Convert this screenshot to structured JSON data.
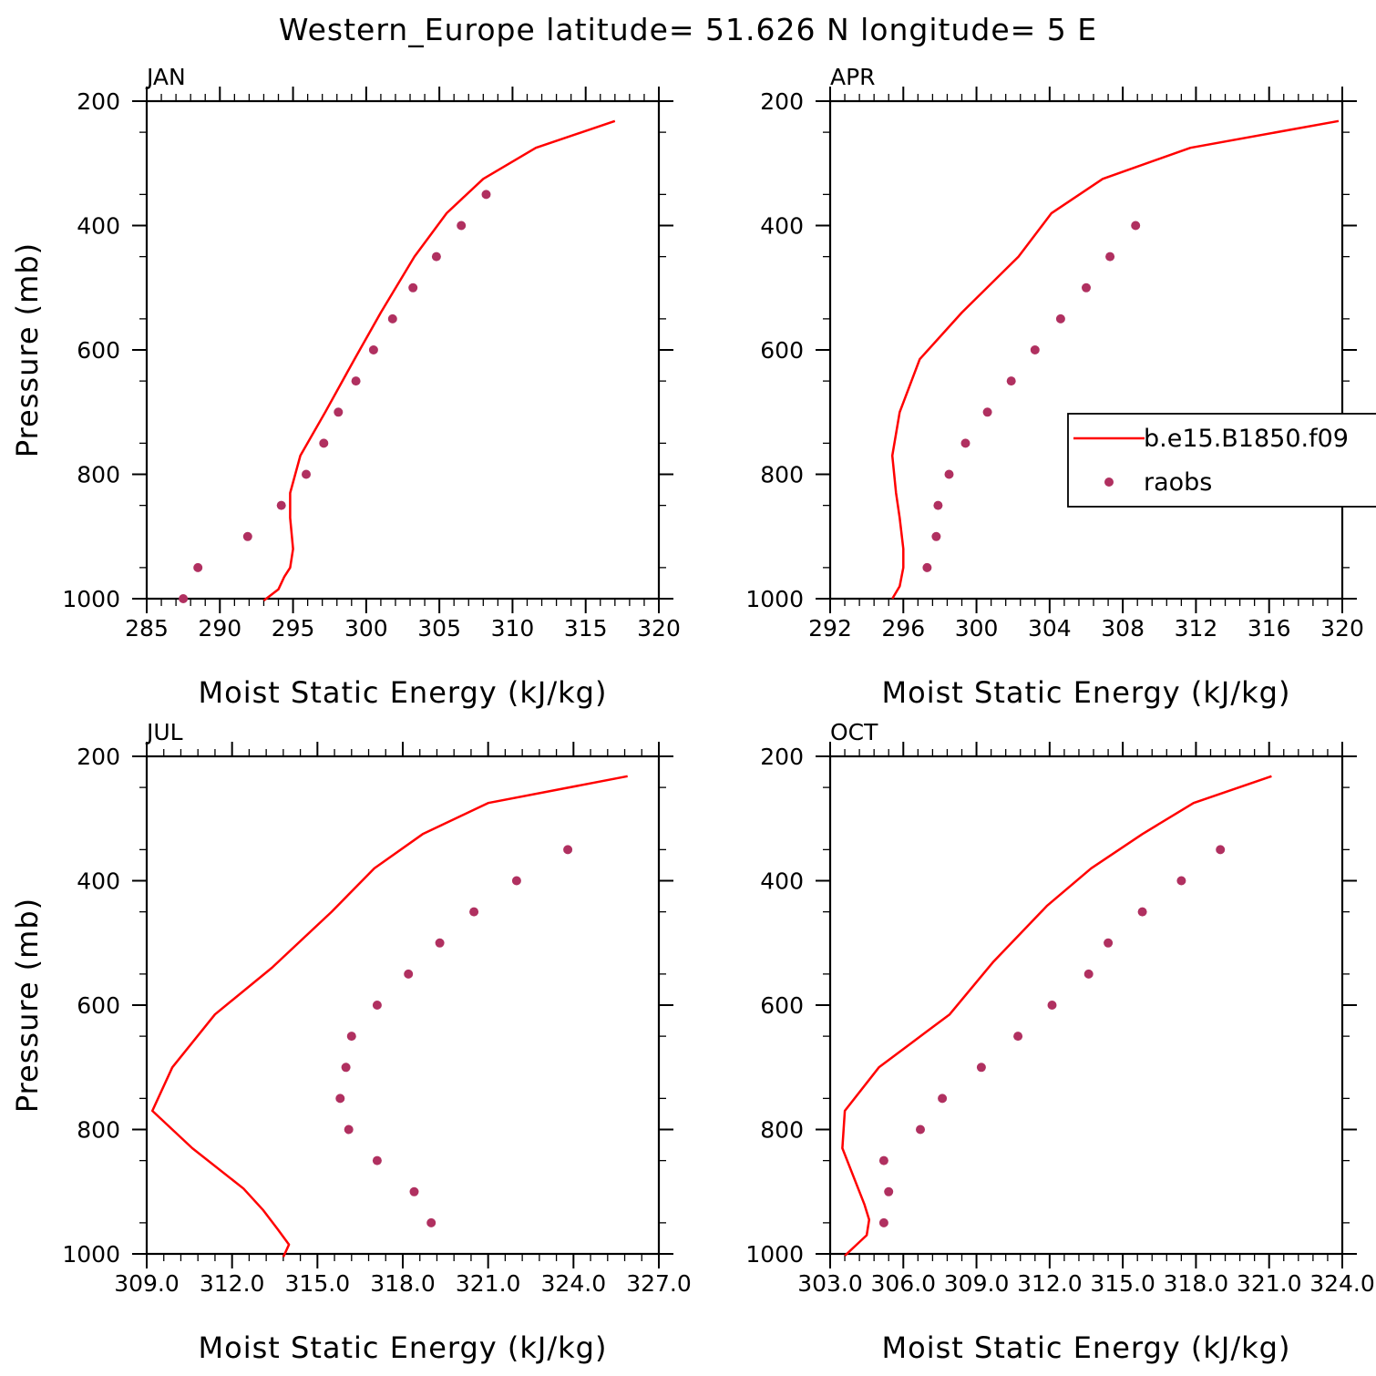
{
  "title": "Western_Europe  latitude= 51.626 N longitude= 5 E",
  "colors": {
    "model": "#ff0000",
    "obs": "#b03060"
  },
  "legend": {
    "model_label": "b.e15.B1850.f09",
    "obs_label": "raobs"
  },
  "chart_data": [
    {
      "type": "line",
      "panel": "JAN",
      "xlabel": "Moist Static Energy (kJ/kg)",
      "ylabel": "Pressure (mb)",
      "xlim": [
        285,
        320
      ],
      "ylim": [
        1000,
        200
      ],
      "xticks": [
        285,
        290,
        295,
        300,
        305,
        310,
        315,
        320
      ],
      "xtick_labels": [
        "285",
        "290",
        "295",
        "300",
        "305",
        "310",
        "315",
        "320"
      ],
      "yticks": [
        200,
        400,
        600,
        800,
        1000
      ],
      "ytick_labels": [
        "200",
        "400",
        "600",
        "800",
        "1000"
      ],
      "series": [
        {
          "name": "b.e15.B1850.f09",
          "style": "line",
          "x": [
            317.0,
            311.6,
            308.0,
            305.5,
            303.3,
            301.0,
            299.2,
            297.2,
            295.5,
            294.8,
            294.8,
            295.0,
            294.8,
            294.4,
            294.0,
            293.0
          ],
          "y": [
            232,
            275,
            325,
            380,
            450,
            540,
            615,
            700,
            770,
            830,
            870,
            920,
            950,
            965,
            985,
            1003
          ]
        },
        {
          "name": "raobs",
          "style": "markers",
          "x": [
            308.2,
            306.5,
            304.8,
            303.2,
            301.8,
            300.5,
            299.3,
            298.1,
            297.1,
            295.9,
            294.2,
            291.9,
            288.5,
            287.5
          ],
          "y": [
            350,
            400,
            450,
            500,
            550,
            600,
            650,
            700,
            750,
            800,
            850,
            900,
            950,
            1000
          ]
        }
      ]
    },
    {
      "type": "line",
      "panel": "APR",
      "xlabel": "Moist Static Energy (kJ/kg)",
      "ylabel": "",
      "xlim": [
        292,
        320
      ],
      "ylim": [
        1000,
        200
      ],
      "xticks": [
        292,
        296,
        300,
        304,
        308,
        312,
        316,
        320
      ],
      "xtick_labels": [
        "292",
        "296",
        "300",
        "304",
        "308",
        "312",
        "316",
        "320"
      ],
      "yticks": [
        200,
        400,
        600,
        800,
        1000
      ],
      "ytick_labels": [
        "200",
        "400",
        "600",
        "800",
        "1000"
      ],
      "series": [
        {
          "name": "b.e15.B1850.f09",
          "style": "line",
          "x": [
            319.8,
            311.7,
            306.9,
            304.1,
            302.3,
            299.2,
            296.9,
            295.8,
            295.4,
            295.6,
            295.8,
            296.0,
            296.0,
            295.8,
            295.4
          ],
          "y": [
            232,
            275,
            325,
            380,
            450,
            540,
            615,
            700,
            770,
            830,
            870,
            920,
            950,
            980,
            1000
          ]
        },
        {
          "name": "raobs",
          "style": "markers",
          "x": [
            308.7,
            307.3,
            306.0,
            304.6,
            303.2,
            301.9,
            300.6,
            299.4,
            298.5,
            297.9,
            297.8,
            297.3
          ],
          "y": [
            400,
            450,
            500,
            550,
            600,
            650,
            700,
            750,
            800,
            850,
            900,
            950
          ]
        }
      ]
    },
    {
      "type": "line",
      "panel": "JUL",
      "xlabel": "Moist Static Energy (kJ/kg)",
      "ylabel": "Pressure (mb)",
      "xlim": [
        309,
        327
      ],
      "ylim": [
        1000,
        200
      ],
      "xticks": [
        309,
        312,
        315,
        318,
        321,
        324,
        327
      ],
      "xtick_labels": [
        "309.0",
        "312.0",
        "315.0",
        "318.0",
        "321.0",
        "324.0",
        "327.0"
      ],
      "yticks": [
        200,
        400,
        600,
        800,
        1000
      ],
      "ytick_labels": [
        "200",
        "400",
        "600",
        "800",
        "1000"
      ],
      "series": [
        {
          "name": "b.e15.B1850.f09",
          "style": "line",
          "x": [
            325.9,
            321.0,
            318.7,
            317.0,
            315.5,
            313.4,
            311.4,
            309.9,
            309.2,
            310.6,
            312.4,
            313.1,
            313.6,
            314.0,
            313.8
          ],
          "y": [
            232,
            275,
            325,
            380,
            450,
            540,
            615,
            700,
            770,
            830,
            895,
            930,
            960,
            985,
            1005
          ]
        },
        {
          "name": "raobs",
          "style": "markers",
          "x": [
            323.8,
            322.0,
            320.5,
            319.3,
            318.2,
            317.1,
            316.2,
            316.0,
            315.8,
            316.1,
            317.1,
            318.4,
            319.0
          ],
          "y": [
            350,
            400,
            450,
            500,
            550,
            600,
            650,
            700,
            750,
            800,
            850,
            900,
            950
          ]
        }
      ]
    },
    {
      "type": "line",
      "panel": "OCT",
      "xlabel": "Moist Static Energy (kJ/kg)",
      "ylabel": "",
      "xlim": [
        303,
        324
      ],
      "ylim": [
        1000,
        200
      ],
      "xticks": [
        303,
        306,
        309,
        312,
        315,
        318,
        321,
        324
      ],
      "xtick_labels": [
        "303.0",
        "306.0",
        "309.0",
        "312.0",
        "315.0",
        "318.0",
        "321.0",
        "324.0"
      ],
      "yticks": [
        200,
        400,
        600,
        800,
        1000
      ],
      "ytick_labels": [
        "200",
        "400",
        "600",
        "800",
        "1000"
      ],
      "series": [
        {
          "name": "b.e15.B1850.f09",
          "style": "line",
          "x": [
            321.1,
            317.9,
            315.8,
            313.7,
            311.9,
            309.7,
            307.9,
            305.0,
            303.6,
            303.5,
            303.9,
            304.4,
            304.6,
            304.5,
            303.6
          ],
          "y": [
            232,
            275,
            325,
            380,
            440,
            530,
            615,
            700,
            770,
            830,
            870,
            920,
            945,
            970,
            1003
          ]
        },
        {
          "name": "raobs",
          "style": "markers",
          "x": [
            319.0,
            317.4,
            315.8,
            314.4,
            313.6,
            312.1,
            310.7,
            309.2,
            307.6,
            306.7,
            305.2,
            305.4,
            305.2
          ],
          "y": [
            350,
            400,
            450,
            500,
            550,
            600,
            650,
            700,
            750,
            800,
            850,
            900,
            950
          ]
        }
      ]
    }
  ]
}
